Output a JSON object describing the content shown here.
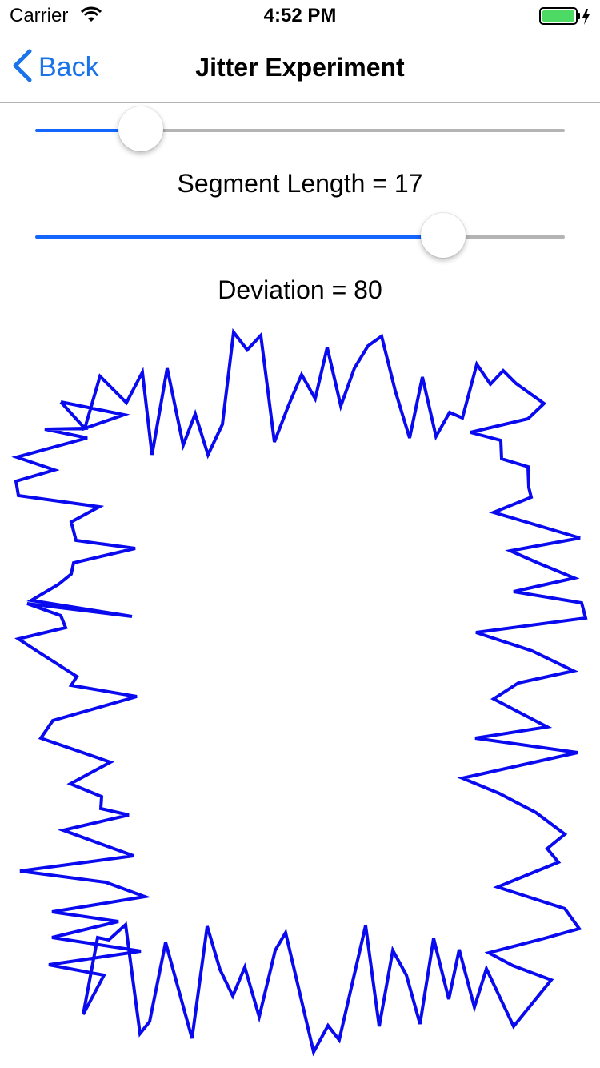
{
  "status_bar": {
    "carrier": "Carrier",
    "time": "4:52 PM",
    "battery_color": "#4cd964"
  },
  "nav": {
    "back_label": "Back",
    "title": "Jitter Experiment",
    "tint": "#1a73e8"
  },
  "segment_slider": {
    "value": 17,
    "fraction": 0.2,
    "label": "Segment Length = 17"
  },
  "deviation_slider": {
    "value": 80,
    "fraction": 0.77,
    "label": "Deviation = 80"
  },
  "drawing": {
    "stroke_color": "#0a0aee",
    "segment_length": 17,
    "deviation": 80
  }
}
